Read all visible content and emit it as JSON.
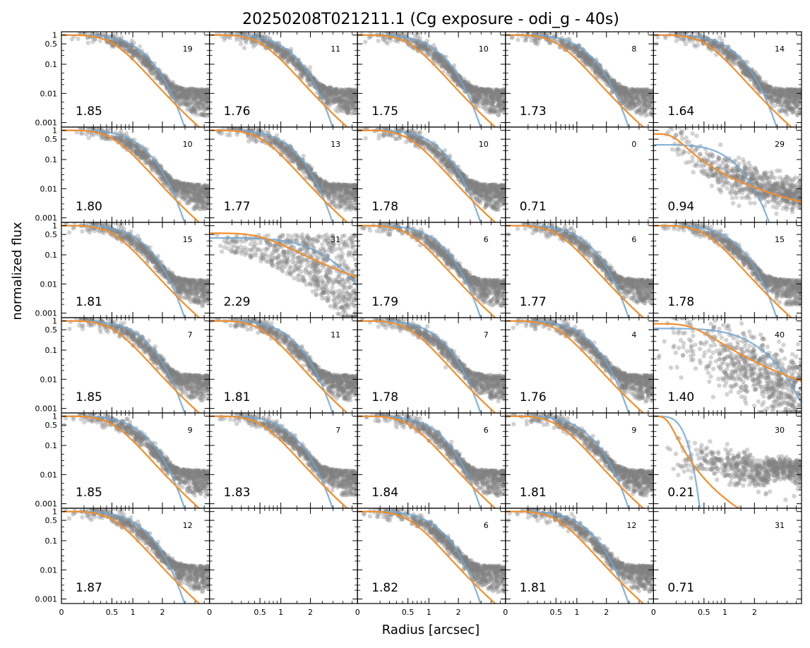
{
  "figure": {
    "title": "20250208T021211.1 (Cg exposure - odi_g - 40s)",
    "xlabel": "Radius [arcsec]",
    "ylabel": "normalized flux"
  },
  "chart_data": {
    "type": "scatter",
    "title": "20250208T021211.1 (Cg exposure - odi_g - 40s)",
    "xlabel": "Radius [arcsec]",
    "ylabel": "normalized flux",
    "y_scale": "log",
    "x_scale": "sqrt",
    "xlim": [
      0,
      4.3
    ],
    "ylim": [
      0.0007,
      1.3
    ],
    "x_ticks": [
      "0",
      "0.5",
      "1",
      "2"
    ],
    "y_ticks": [
      "1",
      "0.5",
      "0.1",
      "0.01",
      "0.001"
    ],
    "grid": false,
    "legend": "none",
    "series_colors": {
      "points": "#808080",
      "model_gauss": "#6fa6d1",
      "model_moffat": "#f28e2b"
    },
    "panels": [
      {
        "fwhm": "1.85",
        "count": "19",
        "kind": "normal"
      },
      {
        "fwhm": "1.76",
        "count": "11",
        "kind": "normal"
      },
      {
        "fwhm": "1.75",
        "count": "10",
        "kind": "normal"
      },
      {
        "fwhm": "1.73",
        "count": "8",
        "kind": "normal"
      },
      {
        "fwhm": "1.64",
        "count": "14",
        "kind": "normal"
      },
      {
        "fwhm": "1.80",
        "count": "10",
        "kind": "normal"
      },
      {
        "fwhm": "1.77",
        "count": "13",
        "kind": "normal"
      },
      {
        "fwhm": "1.78",
        "count": "10",
        "kind": "normal"
      },
      {
        "fwhm": "0.71",
        "count": "0",
        "kind": "empty"
      },
      {
        "fwhm": "0.94",
        "count": "29",
        "kind": "odd1"
      },
      {
        "fwhm": "1.81",
        "count": "15",
        "kind": "normal"
      },
      {
        "fwhm": "2.29",
        "count": "31",
        "kind": "broad"
      },
      {
        "fwhm": "1.79",
        "count": "6",
        "kind": "normal"
      },
      {
        "fwhm": "1.77",
        "count": "6",
        "kind": "normal"
      },
      {
        "fwhm": "1.78",
        "count": "15",
        "kind": "normal"
      },
      {
        "fwhm": "1.85",
        "count": "7",
        "kind": "normal"
      },
      {
        "fwhm": "1.81",
        "count": "11",
        "kind": "normal"
      },
      {
        "fwhm": "1.78",
        "count": "7",
        "kind": "normal"
      },
      {
        "fwhm": "1.76",
        "count": "4",
        "kind": "normal"
      },
      {
        "fwhm": "1.40",
        "count": "40",
        "kind": "odd2"
      },
      {
        "fwhm": "1.85",
        "count": "9",
        "kind": "normal"
      },
      {
        "fwhm": "1.83",
        "count": "7",
        "kind": "normal"
      },
      {
        "fwhm": "1.84",
        "count": "6",
        "kind": "normal"
      },
      {
        "fwhm": "1.81",
        "count": "9",
        "kind": "normal"
      },
      {
        "fwhm": "0.21",
        "count": "30",
        "kind": "odd3"
      },
      {
        "fwhm": "1.87",
        "count": "12",
        "kind": "normal"
      },
      {
        "fwhm": "",
        "count": "",
        "kind": "blank"
      },
      {
        "fwhm": "1.82",
        "count": "6",
        "kind": "normal"
      },
      {
        "fwhm": "1.81",
        "count": "12",
        "kind": "normal"
      },
      {
        "fwhm": "0.71",
        "count": "31",
        "kind": "empty"
      }
    ]
  }
}
